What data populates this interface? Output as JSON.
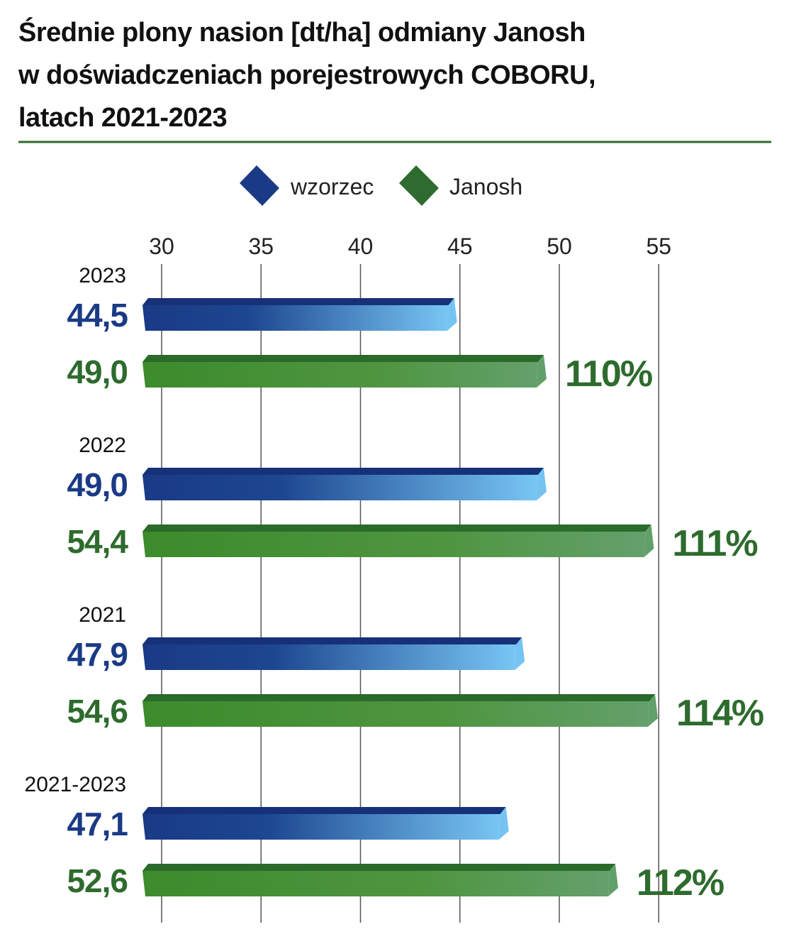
{
  "colors": {
    "wzorzec_dark": "#1a3a85",
    "wzorzec_light": "#74c3f2",
    "wzorzec_top": "#16317a",
    "janosh_dark": "#3b8a2c",
    "janosh_light": "#62a06a",
    "janosh_top": "#2a6a2a",
    "janosh_text": "#2e6b2e",
    "wzorzec_text": "#1a3a85",
    "rule": "#2f6b2f",
    "grid": "#555555"
  },
  "chart_data": {
    "type": "bar",
    "orientation": "horizontal",
    "title": [
      "Średnie plony nasion [dt/ha] odmiany Janosh",
      "w doświadczeniach porejestrowych COBORU,",
      "latach 2021-2023"
    ],
    "categories": [
      "2023",
      "2022",
      "2021",
      "2021-2023"
    ],
    "series": [
      {
        "name": "wzorzec",
        "values": [
          44.5,
          49.0,
          47.9,
          47.1
        ],
        "labels": [
          "44,5",
          "49,0",
          "47,9",
          "47,1"
        ]
      },
      {
        "name": "Janosh",
        "values": [
          49.0,
          54.4,
          54.6,
          52.6
        ],
        "labels": [
          "49,0",
          "54,4",
          "54,6",
          "52,6"
        ],
        "percent_labels": [
          "110%",
          "111%",
          "114%",
          "112%"
        ]
      }
    ],
    "xticks": [
      "30",
      "35",
      "40",
      "45",
      "50",
      "55"
    ],
    "xtick_values": [
      30,
      35,
      40,
      45,
      50,
      55
    ],
    "xlim": [
      30,
      55
    ],
    "grid": true,
    "legend_position": "top"
  }
}
